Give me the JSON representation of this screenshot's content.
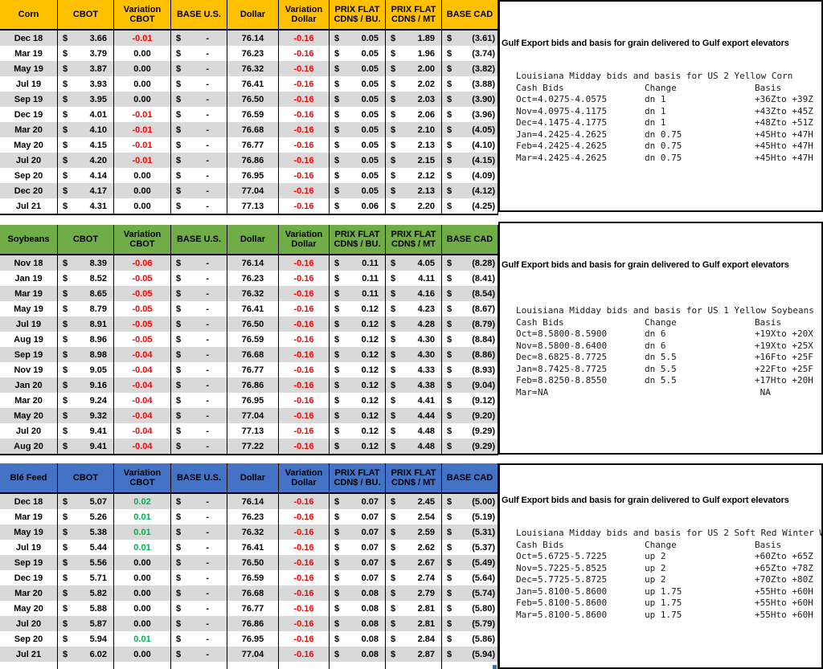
{
  "currency_symbol": "$",
  "columns": [
    "CBOT",
    "Variation CBOT",
    "BASE U.S.",
    "Dollar",
    "Variation Dollar",
    "PRIX FLAT CDN$ / BU.",
    "PRIX FLAT CDN$ / MT",
    "BASE CAD"
  ],
  "colors": {
    "corn_header": "#FFC000",
    "soybeans_header": "#70AD47",
    "ble_feed_header": "#4472C4",
    "row_stripe": "#D9D9D9",
    "negative": "#FF0000",
    "positive": "#00B050"
  },
  "sections": [
    {
      "name": "Corn",
      "rows": [
        {
          "month": "Dec 18",
          "cbot": "3.66",
          "var_cbot": "-0.01",
          "base_us": "-",
          "dollar": "76.14",
          "var_dollar": "-0.16",
          "flat_bu": "0.05",
          "flat_mt": "1.89",
          "base_cad": "(3.61)"
        },
        {
          "month": "Mar 19",
          "cbot": "3.79",
          "var_cbot": "0.00",
          "base_us": "-",
          "dollar": "76.23",
          "var_dollar": "-0.16",
          "flat_bu": "0.05",
          "flat_mt": "1.96",
          "base_cad": "(3.74)"
        },
        {
          "month": "May 19",
          "cbot": "3.87",
          "var_cbot": "0.00",
          "base_us": "-",
          "dollar": "76.32",
          "var_dollar": "-0.16",
          "flat_bu": "0.05",
          "flat_mt": "2.00",
          "base_cad": "(3.82)"
        },
        {
          "month": "Jul 19",
          "cbot": "3.93",
          "var_cbot": "0.00",
          "base_us": "-",
          "dollar": "76.41",
          "var_dollar": "-0.16",
          "flat_bu": "0.05",
          "flat_mt": "2.02",
          "base_cad": "(3.88)"
        },
        {
          "month": "Sep 19",
          "cbot": "3.95",
          "var_cbot": "0.00",
          "base_us": "-",
          "dollar": "76.50",
          "var_dollar": "-0.16",
          "flat_bu": "0.05",
          "flat_mt": "2.03",
          "base_cad": "(3.90)"
        },
        {
          "month": "Dec 19",
          "cbot": "4.01",
          "var_cbot": "-0.01",
          "base_us": "-",
          "dollar": "76.59",
          "var_dollar": "-0.16",
          "flat_bu": "0.05",
          "flat_mt": "2.06",
          "base_cad": "(3.96)"
        },
        {
          "month": "Mar 20",
          "cbot": "4.10",
          "var_cbot": "-0.01",
          "base_us": "-",
          "dollar": "76.68",
          "var_dollar": "-0.16",
          "flat_bu": "0.05",
          "flat_mt": "2.10",
          "base_cad": "(4.05)"
        },
        {
          "month": "May 20",
          "cbot": "4.15",
          "var_cbot": "-0.01",
          "base_us": "-",
          "dollar": "76.77",
          "var_dollar": "-0.16",
          "flat_bu": "0.05",
          "flat_mt": "2.13",
          "base_cad": "(4.10)"
        },
        {
          "month": "Jul 20",
          "cbot": "4.20",
          "var_cbot": "-0.01",
          "base_us": "-",
          "dollar": "76.86",
          "var_dollar": "-0.16",
          "flat_bu": "0.05",
          "flat_mt": "2.15",
          "base_cad": "(4.15)"
        },
        {
          "month": "Sep 20",
          "cbot": "4.14",
          "var_cbot": "0.00",
          "base_us": "-",
          "dollar": "76.95",
          "var_dollar": "-0.16",
          "flat_bu": "0.05",
          "flat_mt": "2.12",
          "base_cad": "(4.09)"
        },
        {
          "month": "Dec 20",
          "cbot": "4.17",
          "var_cbot": "0.00",
          "base_us": "-",
          "dollar": "77.04",
          "var_dollar": "-0.16",
          "flat_bu": "0.05",
          "flat_mt": "2.13",
          "base_cad": "(4.12)"
        },
        {
          "month": "Jul 21",
          "cbot": "4.31",
          "var_cbot": "0.00",
          "base_us": "-",
          "dollar": "77.13",
          "var_dollar": "-0.16",
          "flat_bu": "0.06",
          "flat_mt": "2.20",
          "base_cad": "(4.25)"
        }
      ],
      "panel": {
        "title": "Gulf Export bids and basis for grain delivered to Gulf export elevators",
        "underscore": "",
        "subtitle": "Louisiana Midday bids and basis for US 2 Yellow Corn",
        "headers": {
          "cash": "Cash Bids",
          "change": "Change",
          "basis": "Basis"
        },
        "rows": [
          {
            "m": "Oct=",
            "bid": "4.0275-4.0575",
            "chg": "dn 1",
            "basis": "+36Zto +39Z"
          },
          {
            "m": "Nov=",
            "bid": "4.0975-4.1175",
            "chg": "dn 1",
            "basis": "+43Zto +45Z"
          },
          {
            "m": "Dec=",
            "bid": "4.1475-4.1775",
            "chg": "dn 1",
            "basis": "+48Zto +51Z"
          },
          {
            "m": "Jan=",
            "bid": "4.2425-4.2625",
            "chg": "dn 0.75",
            "basis": "+45Hto +47H"
          },
          {
            "m": "Feb=",
            "bid": "4.2425-4.2625",
            "chg": "dn 0.75",
            "basis": "+45Hto +47H"
          },
          {
            "m": "Mar=",
            "bid": "4.2425-4.2625",
            "chg": "dn 0.75",
            "basis": "+45Hto +47H"
          }
        ]
      }
    },
    {
      "name": "Soybeans",
      "rows": [
        {
          "month": "Nov 18",
          "cbot": "8.39",
          "var_cbot": "-0.06",
          "base_us": "-",
          "dollar": "76.14",
          "var_dollar": "-0.16",
          "flat_bu": "0.11",
          "flat_mt": "4.05",
          "base_cad": "(8.28)"
        },
        {
          "month": "Jan 19",
          "cbot": "8.52",
          "var_cbot": "-0.05",
          "base_us": "-",
          "dollar": "76.23",
          "var_dollar": "-0.16",
          "flat_bu": "0.11",
          "flat_mt": "4.11",
          "base_cad": "(8.41)"
        },
        {
          "month": "Mar 19",
          "cbot": "8.65",
          "var_cbot": "-0.05",
          "base_us": "-",
          "dollar": "76.32",
          "var_dollar": "-0.16",
          "flat_bu": "0.11",
          "flat_mt": "4.16",
          "base_cad": "(8.54)"
        },
        {
          "month": "May 19",
          "cbot": "8.79",
          "var_cbot": "-0.05",
          "base_us": "-",
          "dollar": "76.41",
          "var_dollar": "-0.16",
          "flat_bu": "0.12",
          "flat_mt": "4.23",
          "base_cad": "(8.67)"
        },
        {
          "month": "Jul 19",
          "cbot": "8.91",
          "var_cbot": "-0.05",
          "base_us": "-",
          "dollar": "76.50",
          "var_dollar": "-0.16",
          "flat_bu": "0.12",
          "flat_mt": "4.28",
          "base_cad": "(8.79)"
        },
        {
          "month": "Aug 19",
          "cbot": "8.96",
          "var_cbot": "-0.05",
          "base_us": "-",
          "dollar": "76.59",
          "var_dollar": "-0.16",
          "flat_bu": "0.12",
          "flat_mt": "4.30",
          "base_cad": "(8.84)"
        },
        {
          "month": "Sep 19",
          "cbot": "8.98",
          "var_cbot": "-0.04",
          "base_us": "-",
          "dollar": "76.68",
          "var_dollar": "-0.16",
          "flat_bu": "0.12",
          "flat_mt": "4.30",
          "base_cad": "(8.86)"
        },
        {
          "month": "Nov 19",
          "cbot": "9.05",
          "var_cbot": "-0.04",
          "base_us": "-",
          "dollar": "76.77",
          "var_dollar": "-0.16",
          "flat_bu": "0.12",
          "flat_mt": "4.33",
          "base_cad": "(8.93)"
        },
        {
          "month": "Jan 20",
          "cbot": "9.16",
          "var_cbot": "-0.04",
          "base_us": "-",
          "dollar": "76.86",
          "var_dollar": "-0.16",
          "flat_bu": "0.12",
          "flat_mt": "4.38",
          "base_cad": "(9.04)"
        },
        {
          "month": "Mar 20",
          "cbot": "9.24",
          "var_cbot": "-0.04",
          "base_us": "-",
          "dollar": "76.95",
          "var_dollar": "-0.16",
          "flat_bu": "0.12",
          "flat_mt": "4.41",
          "base_cad": "(9.12)"
        },
        {
          "month": "May 20",
          "cbot": "9.32",
          "var_cbot": "-0.04",
          "base_us": "-",
          "dollar": "77.04",
          "var_dollar": "-0.16",
          "flat_bu": "0.12",
          "flat_mt": "4.44",
          "base_cad": "(9.20)"
        },
        {
          "month": "Jul 20",
          "cbot": "9.41",
          "var_cbot": "-0.04",
          "base_us": "-",
          "dollar": "77.13",
          "var_dollar": "-0.16",
          "flat_bu": "0.12",
          "flat_mt": "4.48",
          "base_cad": "(9.29)"
        },
        {
          "month": "Aug 20",
          "cbot": "9.41",
          "var_cbot": "-0.04",
          "base_us": "-",
          "dollar": "77.22",
          "var_dollar": "-0.16",
          "flat_bu": "0.12",
          "flat_mt": "4.48",
          "base_cad": "(9.29)"
        }
      ],
      "panel": {
        "title": "Gulf Export bids and basis for grain delivered to Gulf export elevators",
        "underscore": "_",
        "subtitle": "Louisiana Midday bids and basis for US 1 Yellow Soybeans",
        "headers": {
          "cash": "Cash Bids",
          "change": "Change",
          "basis": "Basis"
        },
        "rows": [
          {
            "m": "Oct=",
            "bid": "8.5800-8.5900",
            "chg": "dn 6",
            "basis": "+19Xto +20X"
          },
          {
            "m": "Nov=",
            "bid": "8.5800-8.6400",
            "chg": "dn 6",
            "basis": "+19Xto +25X"
          },
          {
            "m": "Dec=",
            "bid": "8.6825-8.7725",
            "chg": "dn 5.5",
            "basis": "+16Fto +25F"
          },
          {
            "m": "Jan=",
            "bid": "8.7425-8.7725",
            "chg": "dn 5.5",
            "basis": "+22Fto +25F"
          },
          {
            "m": "Feb=",
            "bid": "8.8250-8.8550",
            "chg": "dn 5.5",
            "basis": "+17Hto +20H"
          },
          {
            "m": "Mar=",
            "bid": "NA",
            "chg": "",
            "basis": " NA"
          }
        ]
      }
    },
    {
      "name": "Blé Feed",
      "rows": [
        {
          "month": "Dec 18",
          "cbot": "5.07",
          "var_cbot": "0.02",
          "base_us": "-",
          "dollar": "76.14",
          "var_dollar": "-0.16",
          "flat_bu": "0.07",
          "flat_mt": "2.45",
          "base_cad": "(5.00)"
        },
        {
          "month": "Mar 19",
          "cbot": "5.26",
          "var_cbot": "0.01",
          "base_us": "-",
          "dollar": "76.23",
          "var_dollar": "-0.16",
          "flat_bu": "0.07",
          "flat_mt": "2.54",
          "base_cad": "(5.19)"
        },
        {
          "month": "May 19",
          "cbot": "5.38",
          "var_cbot": "0.01",
          "base_us": "-",
          "dollar": "76.32",
          "var_dollar": "-0.16",
          "flat_bu": "0.07",
          "flat_mt": "2.59",
          "base_cad": "(5.31)"
        },
        {
          "month": "Jul 19",
          "cbot": "5.44",
          "var_cbot": "0.01",
          "base_us": "-",
          "dollar": "76.41",
          "var_dollar": "-0.16",
          "flat_bu": "0.07",
          "flat_mt": "2.62",
          "base_cad": "(5.37)"
        },
        {
          "month": "Sep 19",
          "cbot": "5.56",
          "var_cbot": "0.00",
          "base_us": "-",
          "dollar": "76.50",
          "var_dollar": "-0.16",
          "flat_bu": "0.07",
          "flat_mt": "2.67",
          "base_cad": "(5.49)"
        },
        {
          "month": "Dec 19",
          "cbot": "5.71",
          "var_cbot": "0.00",
          "base_us": "-",
          "dollar": "76.59",
          "var_dollar": "-0.16",
          "flat_bu": "0.07",
          "flat_mt": "2.74",
          "base_cad": "(5.64)"
        },
        {
          "month": "Mar 20",
          "cbot": "5.82",
          "var_cbot": "0.00",
          "base_us": "-",
          "dollar": "76.68",
          "var_dollar": "-0.16",
          "flat_bu": "0.08",
          "flat_mt": "2.79",
          "base_cad": "(5.74)"
        },
        {
          "month": "May 20",
          "cbot": "5.88",
          "var_cbot": "0.00",
          "base_us": "-",
          "dollar": "76.77",
          "var_dollar": "-0.16",
          "flat_bu": "0.08",
          "flat_mt": "2.81",
          "base_cad": "(5.80)"
        },
        {
          "month": "Jul 20",
          "cbot": "5.87",
          "var_cbot": "0.00",
          "base_us": "-",
          "dollar": "76.86",
          "var_dollar": "-0.16",
          "flat_bu": "0.08",
          "flat_mt": "2.81",
          "base_cad": "(5.79)"
        },
        {
          "month": "Sep 20",
          "cbot": "5.94",
          "var_cbot": "0.01",
          "base_us": "-",
          "dollar": "76.95",
          "var_dollar": "-0.16",
          "flat_bu": "0.08",
          "flat_mt": "2.84",
          "base_cad": "(5.86)"
        },
        {
          "month": "Jul 21",
          "cbot": "6.02",
          "var_cbot": "0.00",
          "base_us": "-",
          "dollar": "77.04",
          "var_dollar": "-0.16",
          "flat_bu": "0.08",
          "flat_mt": "2.87",
          "base_cad": "(5.94)"
        }
      ],
      "panel": {
        "title": "Gulf Export bids and basis for grain delivered to Gulf export elevators",
        "underscore": "_",
        "subtitle": "Louisiana Midday bids and basis for US 2 Soft Red Winter W",
        "headers": {
          "cash": "Cash Bids",
          "change": "Change",
          "basis": "Basis"
        },
        "rows": [
          {
            "m": "Oct=",
            "bid": "5.6725-5.7225",
            "chg": "up 2",
            "basis": "+60Zto +65Z"
          },
          {
            "m": "Nov=",
            "bid": "5.7225-5.8525",
            "chg": "up 2",
            "basis": "+65Zto +78Z"
          },
          {
            "m": "Dec=",
            "bid": "5.7725-5.8725",
            "chg": "up 2",
            "basis": "+70Zto +80Z"
          },
          {
            "m": "Jan=",
            "bid": "5.8100-5.8600",
            "chg": "up 1.75",
            "basis": "+55Hto +60H"
          },
          {
            "m": "Feb=",
            "bid": "5.8100-5.8600",
            "chg": "up 1.75",
            "basis": "+55Hto +60H"
          },
          {
            "m": "Mar=",
            "bid": "5.8100-5.8600",
            "chg": "up 1.75",
            "basis": "+55Hto +60H"
          }
        ]
      }
    }
  ]
}
